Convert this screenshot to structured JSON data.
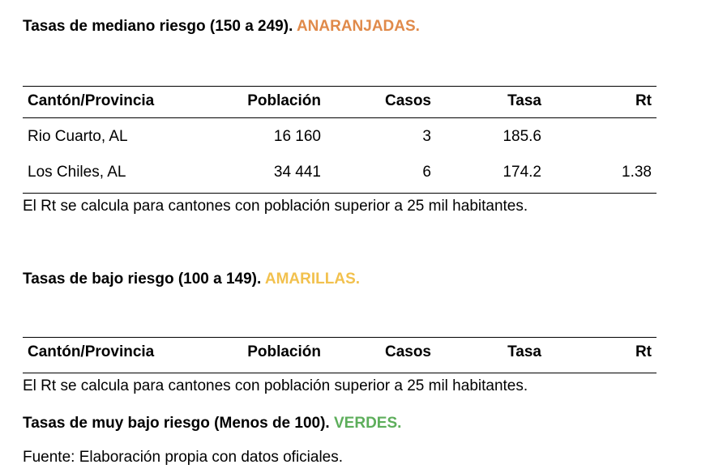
{
  "sections": [
    {
      "title": "Tasas de mediano riesgo (150 a 249).",
      "tag": "ANARANJADAS.",
      "tag_color": "#E08A4A",
      "columns": [
        "Cantón/Provincia",
        "Población",
        "Casos",
        "Tasa",
        "Rt"
      ],
      "rows": [
        [
          "Rio Cuarto, AL",
          "16 160",
          "3",
          "185.6",
          ""
        ],
        [
          "Los Chiles, AL",
          "34 441",
          "6",
          "174.2",
          "1.38"
        ]
      ],
      "note": "El Rt se calcula para cantones con población superior a 25 mil habitantes."
    },
    {
      "title": "Tasas de bajo riesgo (100 a 149).",
      "tag": "AMARILLAS.",
      "tag_color": "#F2C14E",
      "columns": [
        "Cantón/Provincia",
        "Población",
        "Casos",
        "Tasa",
        "Rt"
      ],
      "rows": [],
      "note": "El Rt se calcula para cantones con población superior a 25 mil habitantes."
    },
    {
      "title": "Tasas de muy bajo riesgo (Menos de 100).",
      "tag": "VERDES.",
      "tag_color": "#5DAE5B"
    }
  ],
  "source": "Fuente: Elaboración propia con datos oficiales."
}
